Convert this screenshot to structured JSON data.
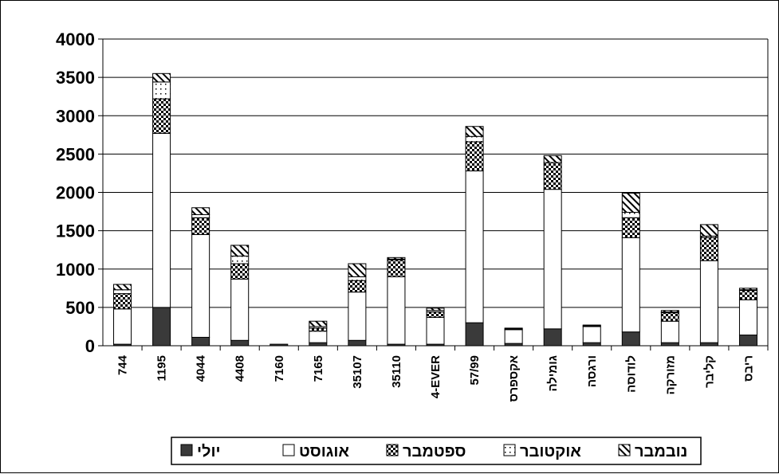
{
  "chart_data": {
    "type": "bar",
    "stacked": true,
    "categories": [
      "744",
      "1195",
      "4044",
      "4408",
      "7160",
      "7165",
      "35107",
      "35110",
      "4-EVER",
      "57/99",
      "אקספרס",
      "גומילה",
      "ורגסה",
      "לודוסה",
      "מזורקה",
      "קליבר",
      "ריבס"
    ],
    "series": [
      {
        "name": "יולי",
        "values": [
          20,
          500,
          110,
          70,
          20,
          40,
          70,
          20,
          20,
          300,
          30,
          220,
          40,
          180,
          40,
          40,
          140
        ]
      },
      {
        "name": "אוגוסט",
        "values": [
          460,
          2270,
          1340,
          800,
          0,
          150,
          630,
          880,
          350,
          1980,
          180,
          1820,
          210,
          1230,
          280,
          1070,
          460
        ]
      },
      {
        "name": "ספטמבר",
        "values": [
          200,
          450,
          220,
          200,
          0,
          40,
          150,
          220,
          70,
          380,
          0,
          350,
          0,
          260,
          110,
          300,
          120
        ]
      },
      {
        "name": "אוקטובר",
        "values": [
          50,
          220,
          40,
          100,
          0,
          20,
          50,
          10,
          20,
          70,
          10,
          0,
          10,
          70,
          10,
          20,
          10
        ]
      },
      {
        "name": "נובמבר",
        "values": [
          70,
          110,
          90,
          140,
          0,
          70,
          170,
          20,
          30,
          130,
          10,
          90,
          10,
          250,
          20,
          150,
          20
        ]
      }
    ],
    "colors": [
      "#3a3a3a",
      "#ffffff",
      "checker",
      "dotted",
      "hatched"
    ],
    "ylim": [
      0,
      4000
    ],
    "yticks": [
      "0",
      "500",
      "1000",
      "1500",
      "2000",
      "2500",
      "3000",
      "3500",
      "4000"
    ],
    "grid": true,
    "legend": "bottom",
    "xlabel": "",
    "ylabel": "",
    "title": ""
  }
}
